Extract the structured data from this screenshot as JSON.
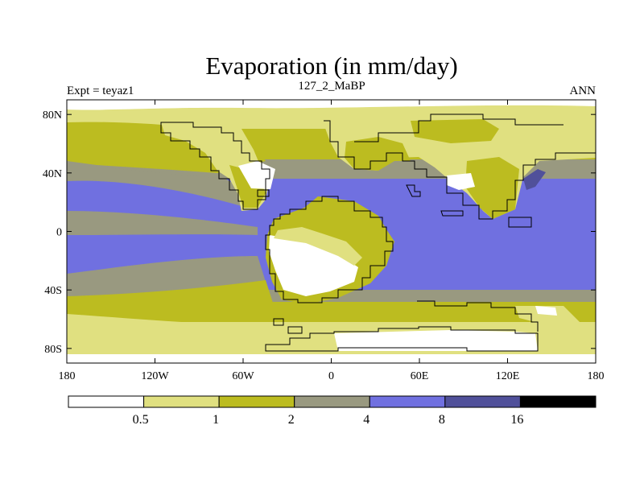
{
  "header": {
    "title": "Evaporation (in mm/day)",
    "left_label": "Expt = teyaz1",
    "center_label": "127_2_MaBP",
    "right_label": "ANN"
  },
  "axes": {
    "y_ticks": [
      {
        "value": 80,
        "label": "80N"
      },
      {
        "value": 40,
        "label": "40N"
      },
      {
        "value": 0,
        "label": "0"
      },
      {
        "value": -40,
        "label": "40S"
      },
      {
        "value": -80,
        "label": "80S"
      }
    ],
    "x_ticks": [
      {
        "value": -180,
        "label": "180"
      },
      {
        "value": -120,
        "label": "120W"
      },
      {
        "value": -60,
        "label": "60W"
      },
      {
        "value": 0,
        "label": "0"
      },
      {
        "value": 60,
        "label": "60E"
      },
      {
        "value": 120,
        "label": "120E"
      },
      {
        "value": 180,
        "label": "180"
      }
    ],
    "lon_range": [
      -180,
      180
    ],
    "lat_range": [
      -90,
      90
    ]
  },
  "colorbar": {
    "colors": [
      "#ffffff",
      "#e0e080",
      "#bcbc20",
      "#999980",
      "#7070e0",
      "#50509a",
      "#000000"
    ],
    "labels": [
      "0.5",
      "1",
      "2",
      "4",
      "8",
      "16"
    ]
  },
  "map_palette": {
    "white": "#ffffff",
    "light": "#e0e080",
    "olive": "#bcbc20",
    "gray": "#999980",
    "blue": "#7070e0",
    "dark": "#50509a"
  }
}
